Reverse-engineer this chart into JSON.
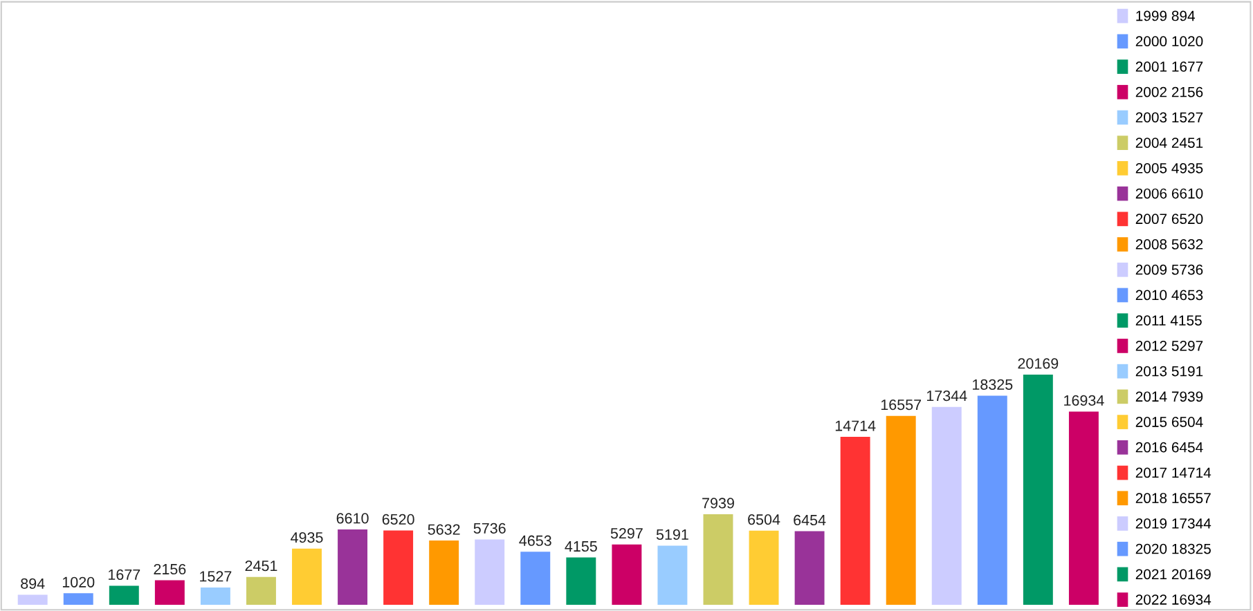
{
  "chart_data": {
    "type": "bar",
    "categories": [
      null,
      null,
      null,
      null,
      null,
      null,
      null,
      null,
      null,
      null,
      null,
      null,
      null,
      null,
      null,
      null,
      null,
      null,
      null,
      null,
      null,
      null,
      null,
      null
    ],
    "series": [
      {
        "name": "1999 894",
        "color": "#ccccff",
        "values": [
          894,
          null,
          null,
          null,
          null,
          null,
          null,
          null,
          null,
          null,
          null,
          null,
          null,
          null,
          null,
          null,
          null,
          null,
          null,
          null,
          null,
          null,
          null,
          null
        ]
      },
      {
        "name": "2000 1020",
        "color": "#6699ff",
        "values": [
          null,
          1020,
          null,
          null,
          null,
          null,
          null,
          null,
          null,
          null,
          null,
          null,
          null,
          null,
          null,
          null,
          null,
          null,
          null,
          null,
          null,
          null,
          null,
          null
        ]
      },
      {
        "name": "2001 1677",
        "color": "#009966",
        "values": [
          null,
          null,
          1677,
          null,
          null,
          null,
          null,
          null,
          null,
          null,
          null,
          null,
          null,
          null,
          null,
          null,
          null,
          null,
          null,
          null,
          null,
          null,
          null,
          null
        ]
      },
      {
        "name": "2002 2156",
        "color": "#cc0066",
        "values": [
          null,
          null,
          null,
          2156,
          null,
          null,
          null,
          null,
          null,
          null,
          null,
          null,
          null,
          null,
          null,
          null,
          null,
          null,
          null,
          null,
          null,
          null,
          null,
          null
        ]
      },
      {
        "name": "2003 1527",
        "color": "#99ccff",
        "values": [
          null,
          null,
          null,
          null,
          1527,
          null,
          null,
          null,
          null,
          null,
          null,
          null,
          null,
          null,
          null,
          null,
          null,
          null,
          null,
          null,
          null,
          null,
          null,
          null
        ]
      },
      {
        "name": "2004 2451",
        "color": "#cccc66",
        "values": [
          null,
          null,
          null,
          null,
          null,
          2451,
          null,
          null,
          null,
          null,
          null,
          null,
          null,
          null,
          null,
          null,
          null,
          null,
          null,
          null,
          null,
          null,
          null,
          null
        ]
      },
      {
        "name": "2005 4935",
        "color": "#ffcc33",
        "values": [
          null,
          null,
          null,
          null,
          null,
          null,
          4935,
          null,
          null,
          null,
          null,
          null,
          null,
          null,
          null,
          null,
          null,
          null,
          null,
          null,
          null,
          null,
          null,
          null
        ]
      },
      {
        "name": "2006 6610",
        "color": "#993399",
        "values": [
          null,
          null,
          null,
          null,
          null,
          null,
          null,
          6610,
          null,
          null,
          null,
          null,
          null,
          null,
          null,
          null,
          null,
          null,
          null,
          null,
          null,
          null,
          null,
          null
        ]
      },
      {
        "name": "2007 6520",
        "color": "#ff3333",
        "values": [
          null,
          null,
          null,
          null,
          null,
          null,
          null,
          null,
          6520,
          null,
          null,
          null,
          null,
          null,
          null,
          null,
          null,
          null,
          null,
          null,
          null,
          null,
          null,
          null
        ]
      },
      {
        "name": "2008 5632",
        "color": "#ff9900",
        "values": [
          null,
          null,
          null,
          null,
          null,
          null,
          null,
          null,
          null,
          5632,
          null,
          null,
          null,
          null,
          null,
          null,
          null,
          null,
          null,
          null,
          null,
          null,
          null,
          null
        ]
      },
      {
        "name": "2009 5736",
        "color": "#ccccff",
        "values": [
          null,
          null,
          null,
          null,
          null,
          null,
          null,
          null,
          null,
          null,
          5736,
          null,
          null,
          null,
          null,
          null,
          null,
          null,
          null,
          null,
          null,
          null,
          null,
          null
        ]
      },
      {
        "name": "2010 4653",
        "color": "#6699ff",
        "values": [
          null,
          null,
          null,
          null,
          null,
          null,
          null,
          null,
          null,
          null,
          null,
          4653,
          null,
          null,
          null,
          null,
          null,
          null,
          null,
          null,
          null,
          null,
          null,
          null
        ]
      },
      {
        "name": "2011 4155",
        "color": "#009966",
        "values": [
          null,
          null,
          null,
          null,
          null,
          null,
          null,
          null,
          null,
          null,
          null,
          null,
          4155,
          null,
          null,
          null,
          null,
          null,
          null,
          null,
          null,
          null,
          null,
          null
        ]
      },
      {
        "name": "2012 5297",
        "color": "#cc0066",
        "values": [
          null,
          null,
          null,
          null,
          null,
          null,
          null,
          null,
          null,
          null,
          null,
          null,
          null,
          5297,
          null,
          null,
          null,
          null,
          null,
          null,
          null,
          null,
          null,
          null
        ]
      },
      {
        "name": "2013 5191",
        "color": "#99ccff",
        "values": [
          null,
          null,
          null,
          null,
          null,
          null,
          null,
          null,
          null,
          null,
          null,
          null,
          null,
          null,
          5191,
          null,
          null,
          null,
          null,
          null,
          null,
          null,
          null,
          null
        ]
      },
      {
        "name": "2014 7939",
        "color": "#cccc66",
        "values": [
          null,
          null,
          null,
          null,
          null,
          null,
          null,
          null,
          null,
          null,
          null,
          null,
          null,
          null,
          null,
          7939,
          null,
          null,
          null,
          null,
          null,
          null,
          null,
          null
        ]
      },
      {
        "name": "2015 6504",
        "color": "#ffcc33",
        "values": [
          null,
          null,
          null,
          null,
          null,
          null,
          null,
          null,
          null,
          null,
          null,
          null,
          null,
          null,
          null,
          null,
          6504,
          null,
          null,
          null,
          null,
          null,
          null,
          null
        ]
      },
      {
        "name": "2016 6454",
        "color": "#993399",
        "values": [
          null,
          null,
          null,
          null,
          null,
          null,
          null,
          null,
          null,
          null,
          null,
          null,
          null,
          null,
          null,
          null,
          null,
          6454,
          null,
          null,
          null,
          null,
          null,
          null
        ]
      },
      {
        "name": "2017 14714",
        "color": "#ff3333",
        "values": [
          null,
          null,
          null,
          null,
          null,
          null,
          null,
          null,
          null,
          null,
          null,
          null,
          null,
          null,
          null,
          null,
          null,
          null,
          14714,
          null,
          null,
          null,
          null,
          null
        ]
      },
      {
        "name": "2018 16557",
        "color": "#ff9900",
        "values": [
          null,
          null,
          null,
          null,
          null,
          null,
          null,
          null,
          null,
          null,
          null,
          null,
          null,
          null,
          null,
          null,
          null,
          null,
          null,
          16557,
          null,
          null,
          null,
          null
        ]
      },
      {
        "name": "2019 17344",
        "color": "#ccccff",
        "values": [
          null,
          null,
          null,
          null,
          null,
          null,
          null,
          null,
          null,
          null,
          null,
          null,
          null,
          null,
          null,
          null,
          null,
          null,
          null,
          null,
          17344,
          null,
          null,
          null
        ]
      },
      {
        "name": "2020 18325",
        "color": "#6699ff",
        "values": [
          null,
          null,
          null,
          null,
          null,
          null,
          null,
          null,
          null,
          null,
          null,
          null,
          null,
          null,
          null,
          null,
          null,
          null,
          null,
          null,
          null,
          18325,
          null,
          null
        ]
      },
      {
        "name": "2021 20169",
        "color": "#009966",
        "values": [
          null,
          null,
          null,
          null,
          null,
          null,
          null,
          null,
          null,
          null,
          null,
          null,
          null,
          null,
          null,
          null,
          null,
          null,
          null,
          null,
          null,
          null,
          20169,
          null
        ]
      },
      {
        "name": "2022 16934",
        "color": "#cc0066",
        "values": [
          null,
          null,
          null,
          null,
          null,
          null,
          null,
          null,
          null,
          null,
          null,
          null,
          null,
          null,
          null,
          null,
          null,
          null,
          null,
          null,
          null,
          null,
          null,
          16934
        ]
      }
    ],
    "stacked": true,
    "data_labels": true,
    "legend": "right",
    "tick_labels": false
  }
}
